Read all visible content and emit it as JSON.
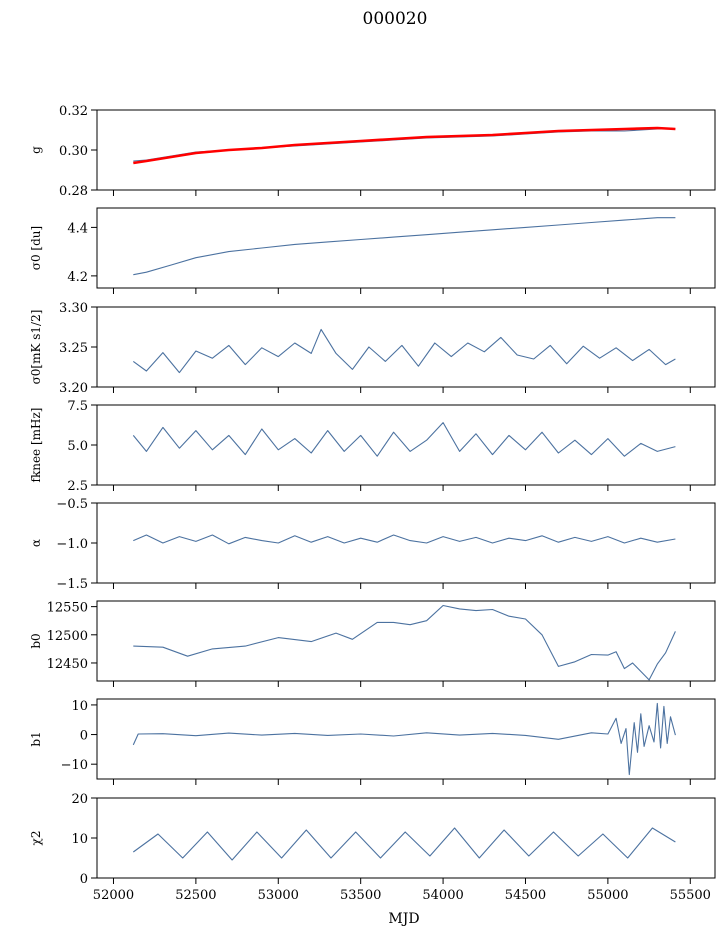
{
  "figure": {
    "title": "000020",
    "xlabel": "MJD"
  },
  "chart_data": {
    "type": "line",
    "title": "000020",
    "xlabel": "MJD",
    "xlim": [
      51900,
      55650
    ],
    "xticks": [
      52000,
      52500,
      53000,
      53500,
      54000,
      54500,
      55000,
      55500
    ],
    "panels": [
      {
        "ylabel": "g",
        "ylim": [
          0.28,
          0.32
        ],
        "yticks": [
          "0.28",
          "0.30",
          "0.32"
        ],
        "x": [
          52120,
          52200,
          52350,
          52500,
          52700,
          52900,
          53100,
          53300,
          53500,
          53700,
          53900,
          54100,
          54300,
          54500,
          54700,
          54900,
          55100,
          55300,
          55410
        ],
        "series": [
          {
            "values": [
              0.2945,
              0.295,
              0.297,
              0.299,
              0.3,
              0.301,
              0.302,
              0.303,
              0.304,
              0.305,
              0.306,
              0.3065,
              0.307,
              0.308,
              0.309,
              0.3095,
              0.3095,
              0.3105,
              0.3105
            ]
          },
          {
            "values": [
              0.2935,
              0.2945,
              0.2965,
              0.2985,
              0.3,
              0.301,
              0.3025,
              0.3035,
              0.3045,
              0.3055,
              0.3065,
              0.307,
              0.3075,
              0.3085,
              0.3095,
              0.31,
              0.3105,
              0.311,
              0.3105
            ]
          }
        ]
      },
      {
        "ylabel": "σ0 [du]",
        "ylim": [
          4.15,
          4.48
        ],
        "yticks": [
          "4.2",
          "4.4"
        ],
        "x": [
          52120,
          52200,
          52350,
          52500,
          52700,
          52900,
          53100,
          53300,
          53500,
          53700,
          53900,
          54100,
          54300,
          54500,
          54700,
          54900,
          55100,
          55300,
          55410
        ],
        "series": [
          {
            "values": [
              4.205,
              4.215,
              4.245,
              4.275,
              4.3,
              4.315,
              4.33,
              4.34,
              4.35,
              4.36,
              4.37,
              4.38,
              4.39,
              4.4,
              4.41,
              4.42,
              4.43,
              4.44,
              4.44
            ]
          }
        ]
      },
      {
        "ylabel": "σ0[mK s1/2]",
        "ylim": [
          3.2,
          3.3
        ],
        "yticks": [
          "3.20",
          "3.25",
          "3.30"
        ],
        "x": [
          52120,
          52200,
          52300,
          52400,
          52500,
          52600,
          52700,
          52800,
          52900,
          53000,
          53100,
          53200,
          53260,
          53350,
          53450,
          53550,
          53650,
          53750,
          53850,
          53950,
          54050,
          54150,
          54250,
          54350,
          54450,
          54550,
          54650,
          54750,
          54850,
          54950,
          55050,
          55150,
          55250,
          55350,
          55410
        ],
        "series": [
          {
            "values": [
              3.232,
              3.22,
              3.243,
              3.218,
              3.245,
              3.236,
              3.252,
              3.228,
              3.249,
              3.238,
              3.255,
              3.242,
              3.272,
              3.242,
              3.222,
              3.25,
              3.232,
              3.252,
              3.226,
              3.255,
              3.238,
              3.255,
              3.244,
              3.262,
              3.24,
              3.235,
              3.252,
              3.229,
              3.251,
              3.236,
              3.249,
              3.233,
              3.247,
              3.228,
              3.235
            ]
          }
        ]
      },
      {
        "ylabel": "fknee [mHz]",
        "ylim": [
          2.5,
          7.5
        ],
        "yticks": [
          "2.5",
          "5.0",
          "7.5"
        ],
        "x": [
          52120,
          52200,
          52300,
          52400,
          52500,
          52600,
          52700,
          52800,
          52900,
          53000,
          53100,
          53200,
          53300,
          53400,
          53500,
          53600,
          53700,
          53800,
          53900,
          54000,
          54100,
          54200,
          54300,
          54400,
          54500,
          54600,
          54700,
          54800,
          54900,
          55000,
          55100,
          55200,
          55300,
          55410
        ],
        "series": [
          {
            "values": [
              5.6,
              4.6,
              6.1,
              4.8,
              5.9,
              4.7,
              5.6,
              4.4,
              6.0,
              4.7,
              5.4,
              4.5,
              5.9,
              4.6,
              5.6,
              4.3,
              5.8,
              4.6,
              5.3,
              6.4,
              4.6,
              5.7,
              4.4,
              5.6,
              4.7,
              5.8,
              4.5,
              5.3,
              4.4,
              5.4,
              4.3,
              5.1,
              4.6,
              4.9
            ]
          }
        ]
      },
      {
        "ylabel": "α",
        "ylim": [
          -1.5,
          -0.5
        ],
        "yticks": [
          "−1.5",
          "−1.0",
          "−0.5"
        ],
        "x": [
          52120,
          52200,
          52300,
          52400,
          52500,
          52600,
          52700,
          52800,
          52900,
          53000,
          53100,
          53200,
          53300,
          53400,
          53500,
          53600,
          53700,
          53800,
          53900,
          54000,
          54100,
          54200,
          54300,
          54400,
          54500,
          54600,
          54700,
          54800,
          54900,
          55000,
          55100,
          55200,
          55300,
          55410
        ],
        "series": [
          {
            "values": [
              -0.97,
              -0.9,
              -1.0,
              -0.92,
              -0.98,
              -0.9,
              -1.01,
              -0.93,
              -0.97,
              -1.0,
              -0.91,
              -0.99,
              -0.92,
              -1.0,
              -0.94,
              -0.99,
              -0.9,
              -0.97,
              -1.0,
              -0.92,
              -0.98,
              -0.93,
              -1.0,
              -0.94,
              -0.97,
              -0.91,
              -0.99,
              -0.93,
              -0.98,
              -0.92,
              -1.0,
              -0.94,
              -0.99,
              -0.95
            ]
          }
        ]
      },
      {
        "ylabel": "b0",
        "ylim": [
          12418,
          12560
        ],
        "yticks": [
          "12450",
          "12500",
          "12550"
        ],
        "x": [
          52120,
          52300,
          52450,
          52600,
          52800,
          53000,
          53200,
          53350,
          53450,
          53600,
          53700,
          53800,
          53900,
          54000,
          54100,
          54200,
          54300,
          54400,
          54500,
          54600,
          54700,
          54800,
          54900,
          55000,
          55050,
          55100,
          55150,
          55200,
          55250,
          55300,
          55350,
          55410
        ],
        "series": [
          {
            "values": [
              12480,
              12478,
              12462,
              12475,
              12480,
              12495,
              12488,
              12503,
              12492,
              12522,
              12522,
              12518,
              12525,
              12552,
              12546,
              12543,
              12545,
              12533,
              12528,
              12500,
              12444,
              12452,
              12465,
              12464,
              12470,
              12440,
              12450,
              12435,
              12420,
              12448,
              12468,
              12506
            ]
          }
        ]
      },
      {
        "ylabel": "b1",
        "ylim": [
          -15,
          12
        ],
        "yticks": [
          "−10",
          "0",
          "10"
        ],
        "x": [
          52120,
          52150,
          52300,
          52500,
          52700,
          52900,
          53100,
          53300,
          53500,
          53700,
          53900,
          54100,
          54300,
          54500,
          54700,
          54900,
          55000,
          55050,
          55080,
          55110,
          55130,
          55160,
          55180,
          55200,
          55220,
          55250,
          55280,
          55300,
          55320,
          55340,
          55360,
          55380,
          55410
        ],
        "series": [
          {
            "values": [
              -3.5,
              0.2,
              0.3,
              -0.4,
              0.5,
              -0.2,
              0.4,
              -0.3,
              0.2,
              -0.5,
              0.6,
              -0.2,
              0.4,
              -0.3,
              -1.6,
              0.6,
              0.2,
              5.5,
              -3.0,
              2.0,
              -13.5,
              4.0,
              -6.0,
              7.0,
              -4.0,
              3.0,
              -2.5,
              10.5,
              -4.5,
              9.5,
              -3.0,
              6.0,
              -0.2
            ]
          }
        ]
      },
      {
        "ylabel": "χ2",
        "ylim": [
          0,
          20
        ],
        "yticks": [
          "0",
          "10",
          "20"
        ],
        "x": [
          52120,
          52270,
          52420,
          52570,
          52720,
          52870,
          53020,
          53170,
          53320,
          53470,
          53620,
          53770,
          53920,
          54070,
          54220,
          54370,
          54520,
          54670,
          54820,
          54970,
          55120,
          55270,
          55410
        ],
        "series": [
          {
            "values": [
              6.5,
              11.0,
              5.0,
              11.5,
              4.5,
              11.5,
              5.0,
              12.0,
              5.0,
              11.5,
              5.0,
              11.5,
              5.5,
              12.5,
              5.0,
              12.0,
              5.5,
              11.5,
              5.5,
              11.0,
              5.0,
              12.5,
              9.0
            ]
          }
        ]
      }
    ]
  }
}
